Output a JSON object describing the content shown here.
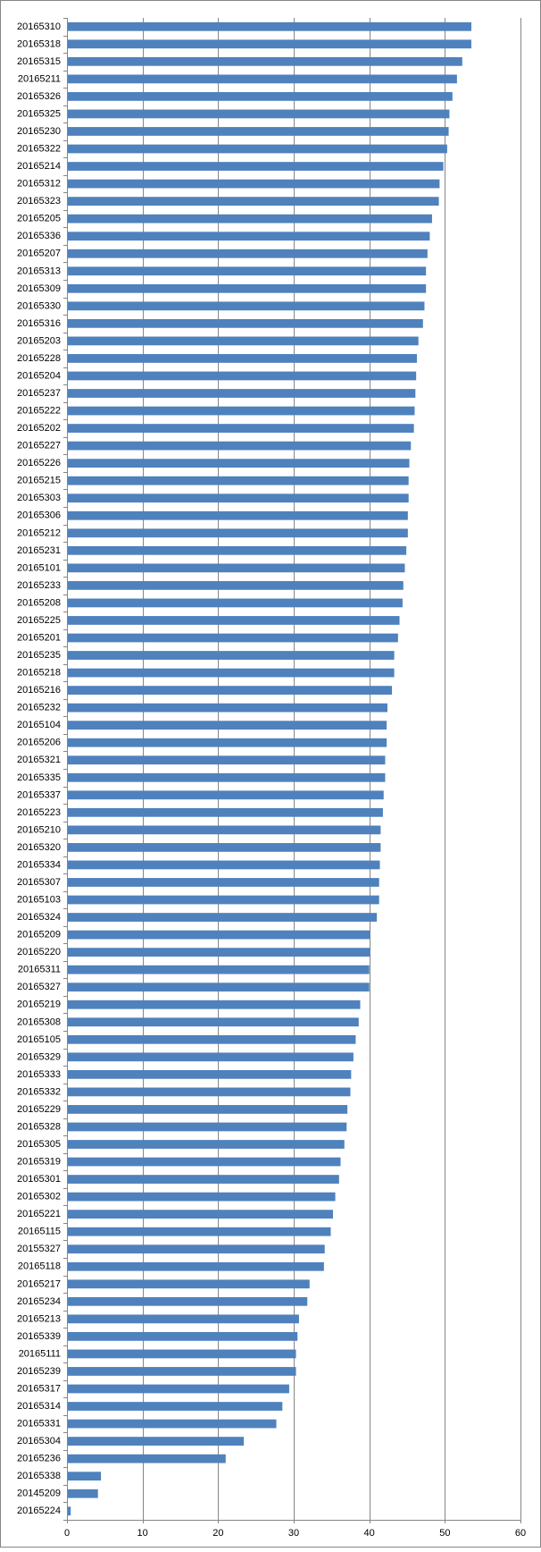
{
  "colors": {
    "bar": "#4f81bd",
    "grid": "#868686",
    "axis": "#868686",
    "text": "#000000",
    "background": "#ffffff"
  },
  "chart_data": {
    "type": "bar",
    "orientation": "horizontal",
    "title": "",
    "xlabel": "",
    "ylabel": "",
    "xlim": [
      0,
      60
    ],
    "x_ticks": [
      0,
      10,
      20,
      30,
      40,
      50,
      60
    ],
    "grid": true,
    "legend": "none",
    "categories": [
      "20165310",
      "20165318",
      "20165315",
      "20165211",
      "20165326",
      "20165325",
      "20165230",
      "20165322",
      "20165214",
      "20165312",
      "20165323",
      "20165205",
      "20165336",
      "20165207",
      "20165313",
      "20165309",
      "20165330",
      "20165316",
      "20165203",
      "20165228",
      "20165204",
      "20165237",
      "20165222",
      "20165202",
      "20165227",
      "20165226",
      "20165215",
      "20165303",
      "20165306",
      "20165212",
      "20165231",
      "20165101",
      "20165233",
      "20165208",
      "20165225",
      "20165201",
      "20165235",
      "20165218",
      "20165216",
      "20165232",
      "20165104",
      "20165206",
      "20165321",
      "20165335",
      "20165337",
      "20165223",
      "20165210",
      "20165320",
      "20165334",
      "20165307",
      "20165103",
      "20165324",
      "20165209",
      "20165220",
      "20165311",
      "20165327",
      "20165219",
      "20165308",
      "20165105",
      "20165329",
      "20165333",
      "20165332",
      "20165229",
      "20165328",
      "20165305",
      "20165319",
      "20165301",
      "20165302",
      "20165221",
      "20165115",
      "20155327",
      "20165118",
      "20165217",
      "20165234",
      "20165213",
      "20165339",
      "20165111",
      "20165239",
      "20165317",
      "20165314",
      "20165331",
      "20165304",
      "20165236",
      "20165338",
      "20145209",
      "20165224"
    ],
    "values": [
      53.5,
      53.5,
      52.3,
      51.6,
      51.0,
      50.6,
      50.5,
      50.3,
      49.8,
      49.3,
      49.2,
      48.3,
      48.0,
      47.7,
      47.5,
      47.5,
      47.3,
      47.1,
      46.5,
      46.3,
      46.2,
      46.1,
      46.0,
      45.9,
      45.5,
      45.3,
      45.2,
      45.2,
      45.1,
      45.1,
      44.9,
      44.7,
      44.5,
      44.4,
      44.0,
      43.8,
      43.3,
      43.3,
      43.0,
      42.4,
      42.3,
      42.3,
      42.1,
      42.1,
      41.9,
      41.8,
      41.5,
      41.5,
      41.4,
      41.3,
      41.3,
      41.0,
      40.1,
      40.1,
      40.0,
      40.0,
      38.8,
      38.6,
      38.2,
      37.9,
      37.6,
      37.5,
      37.1,
      37.0,
      36.7,
      36.2,
      36.0,
      35.5,
      35.2,
      34.9,
      34.1,
      34.0,
      32.1,
      31.8,
      30.7,
      30.5,
      30.3,
      30.3,
      29.4,
      28.5,
      27.7,
      23.4,
      21.0,
      4.5,
      4.1,
      0.5
    ]
  }
}
